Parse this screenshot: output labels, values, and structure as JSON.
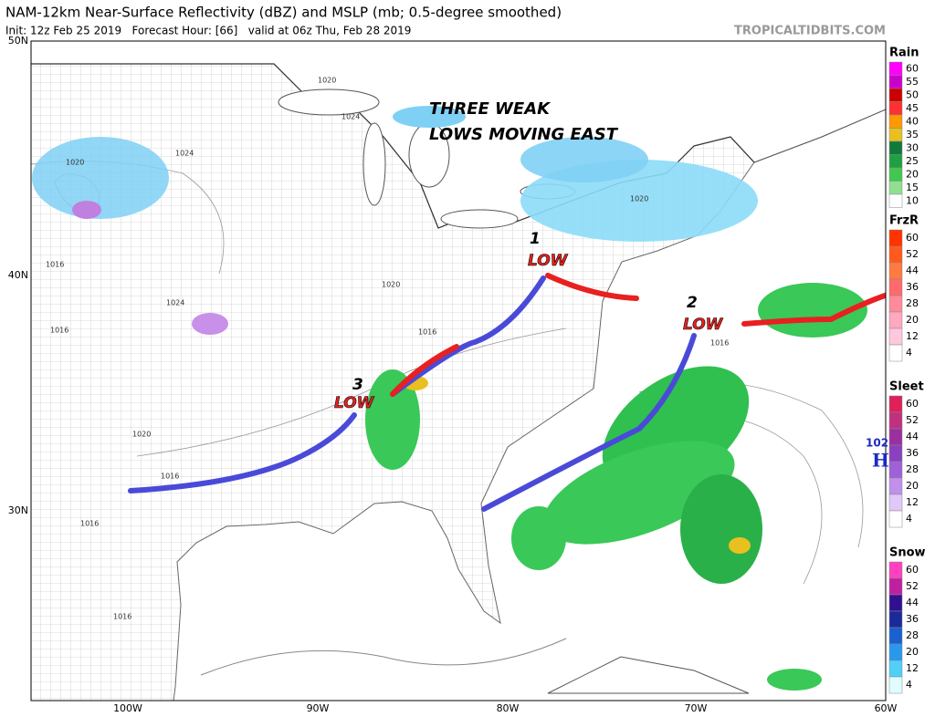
{
  "header": {
    "title": "NAM-12km Near-Surface Reflectivity (dBZ) and MSLP (mb; 0.5-degree smoothed)",
    "subtitle": "Init: 12z Feb 25 2019   Forecast Hour: [66]   valid at 06z Thu, Feb 28 2019",
    "source": "TROPICALTIDBITS.COM"
  },
  "annotation": {
    "line1": "THREE WEAK",
    "line2": "LOWS MOVING EAST"
  },
  "lows": [
    {
      "number": "1",
      "label": "LOW"
    },
    {
      "number": "2",
      "label": "LOW"
    },
    {
      "number": "3",
      "label": "LOW"
    }
  ],
  "lat_labels": [
    "50N",
    "40N",
    "30N"
  ],
  "lon_labels": [
    "100W",
    "90W",
    "80W",
    "70W",
    "60W"
  ],
  "isobar_labels": [
    "1020",
    "1020",
    "1024",
    "1024",
    "1020",
    "1016",
    "1016",
    "1024",
    "1020",
    "1016",
    "1020",
    "1016",
    "1016",
    "1016",
    "1016"
  ],
  "high": {
    "pressure": "102",
    "label": "H"
  },
  "legends": [
    {
      "title": "Rain",
      "ticks": [
        "60",
        "55",
        "50",
        "45",
        "40",
        "35",
        "30",
        "25",
        "20",
        "15",
        "10"
      ],
      "colors": [
        "#ff00ff",
        "#cc00cc",
        "#cc0000",
        "#ff3030",
        "#ff9900",
        "#e8c020",
        "#107a3a",
        "#20a040",
        "#40c850",
        "#90e090",
        "#ffffff"
      ]
    },
    {
      "title": "FrzR",
      "ticks": [
        "60",
        "52",
        "44",
        "36",
        "28",
        "20",
        "12",
        "4"
      ],
      "colors": [
        "#ff3300",
        "#ff5a1a",
        "#ff7a40",
        "#ff6a6a",
        "#ff8a9a",
        "#ffa8c0",
        "#ffc8dc",
        "#ffffff"
      ]
    },
    {
      "title": "Sleet",
      "ticks": [
        "60",
        "52",
        "44",
        "36",
        "28",
        "20",
        "12",
        "4"
      ],
      "colors": [
        "#e0205a",
        "#c03080",
        "#9a30a0",
        "#8a40c0",
        "#a060d8",
        "#c090ec",
        "#e0c8f8",
        "#ffffff"
      ]
    },
    {
      "title": "Snow",
      "ticks": [
        "60",
        "52",
        "44",
        "36",
        "28",
        "20",
        "12",
        "4"
      ],
      "colors": [
        "#ff40c0",
        "#c020a0",
        "#301090",
        "#1a2a9a",
        "#1a60d0",
        "#2a98ec",
        "#50d0f8",
        "#e0fcff"
      ]
    }
  ]
}
